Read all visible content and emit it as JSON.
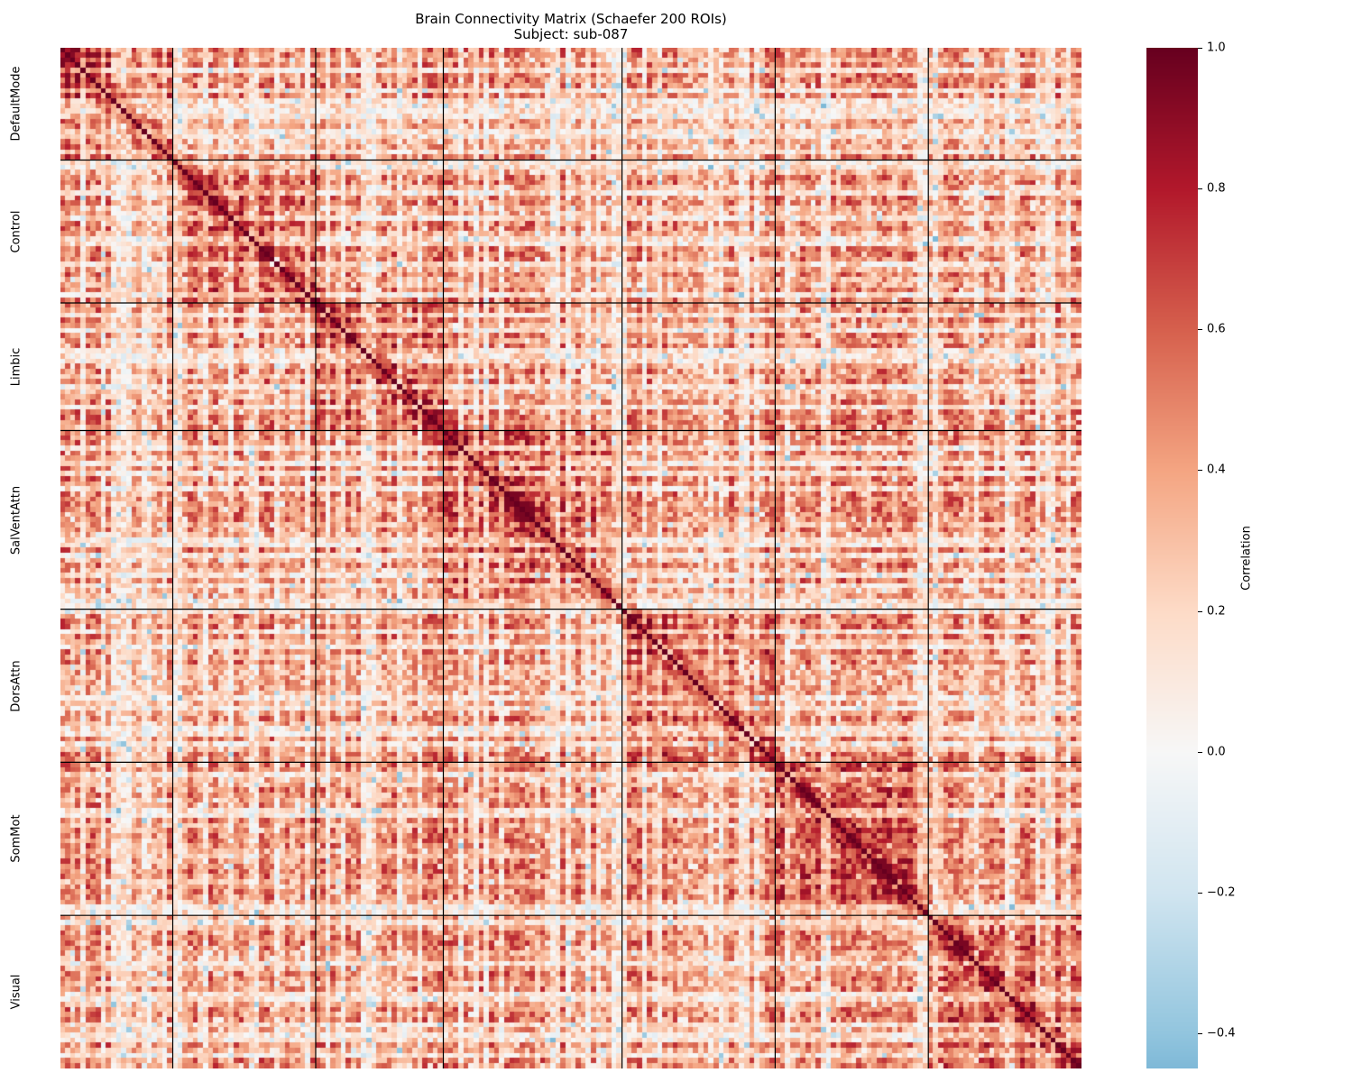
{
  "chart_data": {
    "type": "heatmap",
    "title": "Brain Connectivity Matrix (Schaefer 200 ROIs)",
    "subtitle": "Subject: sub-087",
    "n_rois": 200,
    "colormap": "RdBu_r",
    "vmin": -0.45,
    "vmax": 1.0,
    "diagonal_value": 1.0,
    "networks": [
      {
        "name": "DefaultMode",
        "n_rois": 22
      },
      {
        "name": "Control",
        "n_rois": 28
      },
      {
        "name": "Limbic",
        "n_rois": 25
      },
      {
        "name": "SalVentAttn",
        "n_rois": 35
      },
      {
        "name": "DorsAttn",
        "n_rois": 30
      },
      {
        "name": "SomMot",
        "n_rois": 30
      },
      {
        "name": "Visual",
        "n_rois": 30
      }
    ],
    "colorbar": {
      "label": "Correlation",
      "ticks": [
        1.0,
        0.8,
        0.6,
        0.4,
        0.2,
        0.0,
        -0.2,
        -0.4
      ],
      "tick_labels": [
        "1.0",
        "0.8",
        "0.6",
        "0.4",
        "0.2",
        "0.0",
        "−0.2",
        "−0.4"
      ]
    },
    "grid": false,
    "network_boundaries": true
  }
}
